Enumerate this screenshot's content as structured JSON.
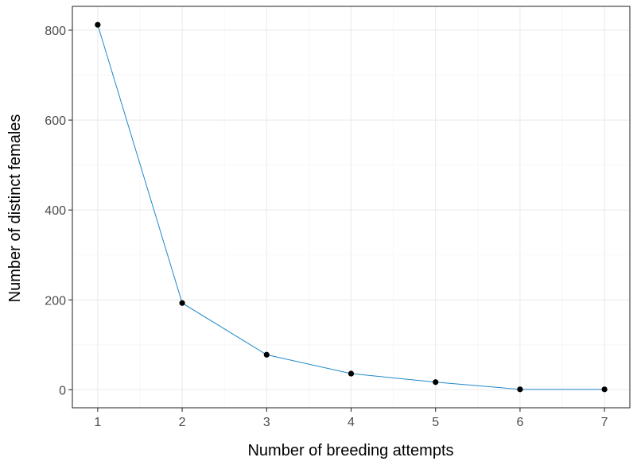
{
  "chart_data": {
    "type": "line",
    "x": [
      1,
      2,
      3,
      4,
      5,
      6,
      7
    ],
    "series": [
      {
        "values": [
          812,
          193,
          78,
          36,
          17,
          1,
          1
        ]
      }
    ],
    "xlabel": "Number of breeding attempts",
    "ylabel": "Number of distinct females",
    "xlim": [
      0.7,
      7.3
    ],
    "ylim": [
      -40,
      853
    ],
    "x_ticks": [
      1,
      2,
      3,
      4,
      5,
      6,
      7
    ],
    "y_ticks": [
      0,
      200,
      400,
      600,
      800
    ],
    "grid": true,
    "line_color": "#1f88c9",
    "point_color": "#000000",
    "panel_border_color": "#333333",
    "grid_major_color": "#ebebeb",
    "grid_minor_color": "#f5f5f5"
  }
}
